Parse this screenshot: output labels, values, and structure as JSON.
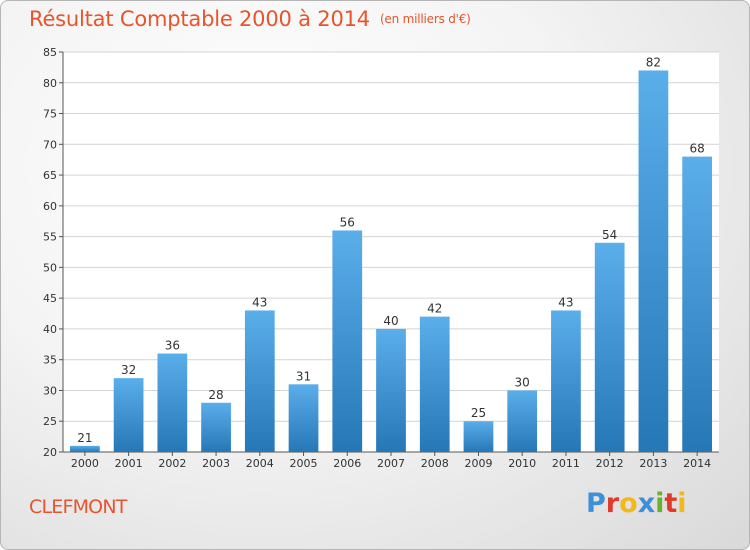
{
  "header": {
    "title": "Résultat Comptable 2000 à 2014",
    "unit": "(en milliers d'€)"
  },
  "footer": {
    "commune": "CLEFMONT",
    "logo_letters": [
      {
        "char": "P",
        "color": "#3c8fd9"
      },
      {
        "char": "r",
        "color": "#e03a2a"
      },
      {
        "char": "o",
        "color": "#f2b81c"
      },
      {
        "char": "x",
        "color": "#3c8fd9"
      },
      {
        "char": "i",
        "color": "#66b22e"
      },
      {
        "char": "t",
        "color": "#e03a2a"
      },
      {
        "char": "i",
        "color": "#f2b81c"
      }
    ]
  },
  "chart_data": {
    "type": "bar",
    "title": "Résultat Comptable 2000 à 2014",
    "categories": [
      "2000",
      "2001",
      "2002",
      "2003",
      "2004",
      "2005",
      "2006",
      "2007",
      "2008",
      "2009",
      "2010",
      "2011",
      "2012",
      "2013",
      "2014"
    ],
    "values": [
      21,
      32,
      36,
      28,
      43,
      31,
      56,
      40,
      42,
      25,
      30,
      43,
      54,
      82,
      68
    ],
    "ylim": [
      20,
      85
    ],
    "yticks": [
      20,
      25,
      30,
      35,
      40,
      45,
      50,
      55,
      60,
      65,
      70,
      75,
      80,
      85
    ],
    "grid": true,
    "bar_color_top": "#5aaeea",
    "bar_color_bottom": "#2677b6"
  }
}
